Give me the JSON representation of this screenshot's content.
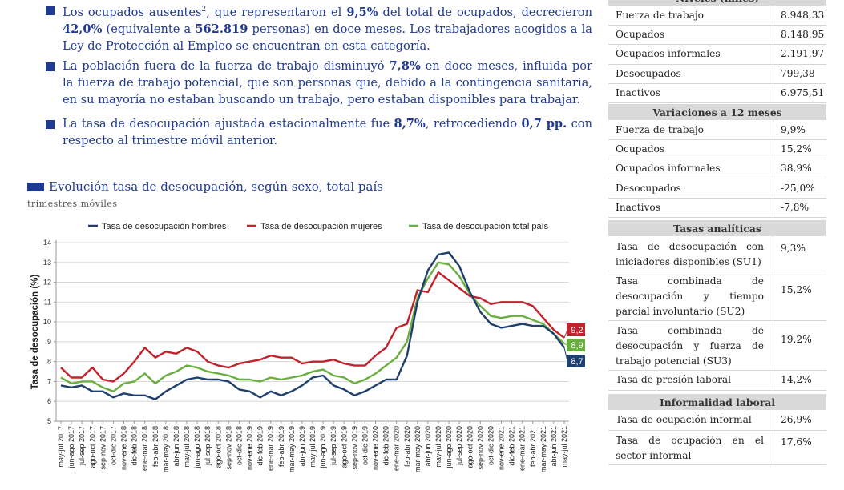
{
  "bullets": [
    {
      "parts": [
        "Los ocupados ausentes",
        "2",
        ", que representaron el ",
        "9,5%",
        " del total de ocupados, decrecieron ",
        "42,0%",
        " (equivalente a ",
        "562.819",
        " personas) en doce meses. Los trabajadores acogidos a la Ley de Protección al Empleo se encuentran en esta categoría."
      ]
    },
    {
      "parts": [
        "La población fuera de la fuerza de trabajo disminuyó ",
        "7,8%",
        " en doce meses, influida por la fuerza de trabajo potencial, que son personas que, debido a la contingencia sanitaria, en su mayoría no estaban buscando un trabajo, pero estaban disponibles para trabajar."
      ]
    },
    {
      "parts": [
        "La tasa de desocupación ajustada estacionalmente fue ",
        "8,7%",
        ", retrocediendo ",
        "0,7 pp.",
        " con respecto al trimestre móvil anterior."
      ]
    }
  ],
  "chart_title": "Evolución tasa de desocupación, según sexo, total país",
  "chart_subtitle": "trimestres móviles",
  "chart_data": {
    "type": "line",
    "ylabel": "Tasa de desocupación (%)",
    "ylim": [
      5,
      14
    ],
    "yticks": [
      "5",
      "6",
      "7",
      "8",
      "9",
      "10",
      "11",
      "12",
      "13",
      "14"
    ],
    "grid": true,
    "legend_position": "top",
    "categories": [
      "may-jul 2017",
      "jun-ago 2017",
      "jul-sep 2017",
      "ago-oct 2017",
      "sep-nov 2017",
      "oct-dic 2017",
      "nov-ene 2018",
      "dic-feb 2018",
      "ene-mar 2018",
      "feb-abr 2018",
      "mar-may 2018",
      "abr-jun 2018",
      "may-jul 2018",
      "jun-ago 2018",
      "jul-sep 2018",
      "ago-oct 2018",
      "sep-nov 2018",
      "oct-dic 2018",
      "nov-ene 2019",
      "dic-feb 2019",
      "ene-mar 2019",
      "feb-abr 2019",
      "mar-may 2019",
      "abr-jun 2019",
      "may-jul 2019",
      "jun-ago 2019",
      "jul-sep 2019",
      "ago-oct 2019",
      "sep-nov 2019",
      "oct-dic 2019",
      "nov-ene 2020",
      "dic-feb 2020",
      "ene-mar 2020",
      "feb-abr 2020",
      "mar-may 2020",
      "abr-jun 2020",
      "may-jul 2020",
      "jun-ago 2020",
      "jul-sep 2020",
      "ago-oct 2020",
      "sep-nov 2020",
      "oct-dic 2020",
      "nov-ene 2021",
      "dic-feb 2021",
      "ene-mar 2021",
      "feb-abr 2021",
      "mar-may 2021",
      "abr-jun 2021",
      "may-jul 2021"
    ],
    "series": [
      {
        "name": "Tasa de desocupación hombres",
        "color": "#1f3f6e",
        "values": [
          6.8,
          6.7,
          6.8,
          6.5,
          6.5,
          6.2,
          6.4,
          6.3,
          6.3,
          6.1,
          6.5,
          6.8,
          7.1,
          7.2,
          7.1,
          7.1,
          7.0,
          6.6,
          6.5,
          6.2,
          6.5,
          6.3,
          6.5,
          6.8,
          7.2,
          7.3,
          6.8,
          6.6,
          6.3,
          6.5,
          6.8,
          7.1,
          7.1,
          8.3,
          11.0,
          12.6,
          13.4,
          13.5,
          12.8,
          11.5,
          10.5,
          9.9,
          9.7,
          9.8,
          9.9,
          9.8,
          9.8,
          9.4,
          8.7
        ]
      },
      {
        "name": "Tasa de desocupación mujeres",
        "color": "#c0232c",
        "values": [
          7.7,
          7.2,
          7.2,
          7.7,
          7.1,
          7.0,
          7.4,
          8.0,
          8.7,
          8.2,
          8.5,
          8.4,
          8.7,
          8.5,
          8.0,
          7.8,
          7.7,
          7.9,
          8.0,
          8.1,
          8.3,
          8.2,
          8.2,
          7.9,
          8.0,
          8.0,
          8.1,
          7.9,
          7.8,
          7.8,
          8.3,
          8.7,
          9.7,
          9.9,
          11.6,
          11.5,
          12.5,
          12.1,
          11.7,
          11.3,
          11.2,
          10.9,
          11.0,
          11.0,
          11.0,
          10.8,
          10.2,
          9.6,
          9.2
        ]
      },
      {
        "name": "Tasa de desocupación total país",
        "color": "#6aae3f",
        "values": [
          7.2,
          6.9,
          7.0,
          7.0,
          6.7,
          6.5,
          6.9,
          7.0,
          7.4,
          6.9,
          7.3,
          7.5,
          7.8,
          7.7,
          7.5,
          7.4,
          7.3,
          7.1,
          7.1,
          7.0,
          7.2,
          7.1,
          7.2,
          7.3,
          7.5,
          7.6,
          7.3,
          7.2,
          6.9,
          7.1,
          7.4,
          7.8,
          8.2,
          9.0,
          11.2,
          12.2,
          13.0,
          12.9,
          12.3,
          11.4,
          10.8,
          10.3,
          10.2,
          10.3,
          10.3,
          10.1,
          9.9,
          9.4,
          8.9
        ]
      }
    ],
    "end_labels": [
      "9,2",
      "8,9",
      "8,7"
    ]
  },
  "table": {
    "top_header": "Niveles (miles)",
    "niveles": [
      {
        "label": "Fuerza de trabajo",
        "value": "8.948,33"
      },
      {
        "label": "Ocupados",
        "value": "8.148,95"
      },
      {
        "label": "Ocupados informales",
        "value": "2.191,97"
      },
      {
        "label": "Desocupados",
        "value": "799,38"
      },
      {
        "label": "Inactivos",
        "value": "6.975,51"
      }
    ],
    "variaciones_header": "Variaciones a 12 meses",
    "variaciones": [
      {
        "label": "Fuerza de trabajo",
        "value": "9,9%"
      },
      {
        "label": "Ocupados",
        "value": "15,2%"
      },
      {
        "label": "Ocupados informales",
        "value": "38,9%"
      },
      {
        "label": "Desocupados",
        "value": "-25,0%"
      },
      {
        "label": "Inactivos",
        "value": "-7,8%"
      }
    ],
    "tasas_header": "Tasas analíticas",
    "tasas": [
      {
        "label": "Tasa de desocupación con iniciadores disponibles (SU1)",
        "value": "9,3%"
      },
      {
        "label": "Tasa combinada de desocupación y tiempo parcial involuntario (SU2)",
        "value": "15,2%"
      },
      {
        "label": "Tasa combinada de desocupación y fuerza de trabajo potencial (SU3)",
        "value": "19,2%"
      },
      {
        "label": "Tasa de presión laboral",
        "value": "14,2%"
      }
    ],
    "informalidad_header": "Informalidad laboral",
    "informalidad": [
      {
        "label": "Tasa de ocupación informal",
        "value": "26,9%"
      },
      {
        "label": "Tasa de ocupación en el sector informal",
        "value": "17,6%"
      }
    ]
  }
}
